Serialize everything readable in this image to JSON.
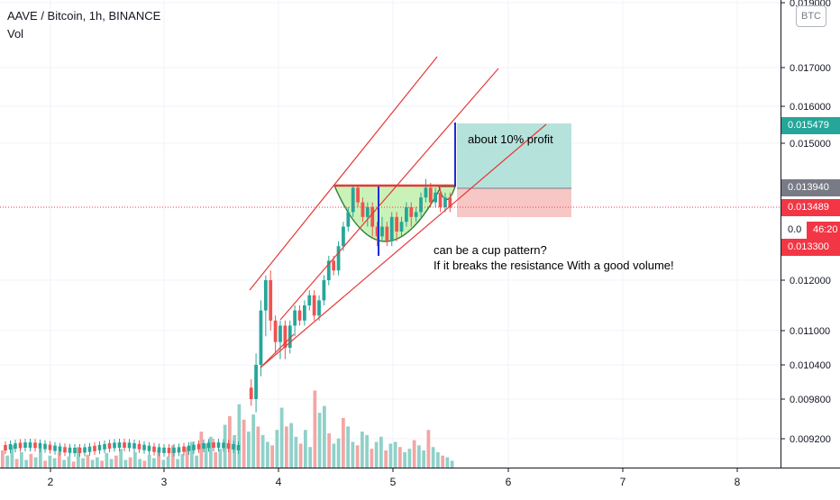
{
  "header": {
    "title": "AAVE / Bitcoin, 1h, BINANCE",
    "indicator": "Vol"
  },
  "currency_badge": "BTC",
  "price_scale": [
    "0.019000",
    "0.017000",
    "0.016000",
    "0.015000",
    "0.012000",
    "0.011000",
    "0.010400",
    "0.009800",
    "0.009200"
  ],
  "time_axis": [
    "2",
    "3",
    "4",
    "5",
    "6",
    "7",
    "8"
  ],
  "price_tags": {
    "target": {
      "label": "0.015479",
      "color": "#26a69a"
    },
    "entry": {
      "label": "0.013940",
      "color": "#787b86"
    },
    "last": {
      "label": "0.013489",
      "color": "#f23645"
    },
    "countdown": {
      "label": "46:20",
      "color": "#f23645"
    },
    "low": {
      "label": "0.013300",
      "color": "#f23645"
    },
    "partial": {
      "label": "0.0"
    }
  },
  "annotations": {
    "profit": "about 10% profit",
    "cup_line1": "can be a cup pattern?",
    "cup_line2": "If it breaks the resistance With a good volume!"
  },
  "colors": {
    "up": "#26a69a",
    "down": "#ef5350",
    "vol_up": "#8fd1c8",
    "vol_down": "#f2a6a5",
    "channel": "#e53935",
    "target_line": "#1f2ad6",
    "profit_zone": "#b6e2dc",
    "loss_zone": "#f7c7c6",
    "cup_fill": "#c9f2b8"
  },
  "chart_data": {
    "type": "candlestick",
    "symbol": "AAVE / Bitcoin",
    "interval": "1h",
    "exchange": "BINANCE",
    "y_axis_ticks": [
      0.019,
      0.017,
      0.016,
      0.015,
      0.012,
      0.011,
      0.0104,
      0.0098,
      0.0092
    ],
    "x_axis_ticks": [
      "2",
      "3",
      "4",
      "5",
      "6",
      "7",
      "8"
    ],
    "ylim": [
      0.0087,
      0.0192
    ],
    "last_price": 0.013489,
    "resistance": 0.01394,
    "target_price": 0.015479,
    "stop_price": 0.0133,
    "candles": [
      [
        0.01,
        0.0098,
        0.01015,
        0.0097
      ],
      [
        0.0098,
        0.0104,
        0.0106,
        0.0096
      ],
      [
        0.0104,
        0.0114,
        0.0116,
        0.0102
      ],
      [
        0.0114,
        0.012,
        0.0121,
        0.0109
      ],
      [
        0.012,
        0.0112,
        0.0122,
        0.011
      ],
      [
        0.0112,
        0.0108,
        0.0113,
        0.0106
      ],
      [
        0.0108,
        0.0111,
        0.0112,
        0.0105
      ],
      [
        0.0111,
        0.0107,
        0.0112,
        0.0105
      ],
      [
        0.0107,
        0.0111,
        0.0112,
        0.0106
      ],
      [
        0.0111,
        0.0114,
        0.0115,
        0.0109
      ],
      [
        0.0114,
        0.0112,
        0.0115,
        0.0111
      ],
      [
        0.0112,
        0.0115,
        0.0116,
        0.0111
      ],
      [
        0.0115,
        0.0117,
        0.0118,
        0.0114
      ],
      [
        0.0117,
        0.0113,
        0.0118,
        0.0112
      ],
      [
        0.0113,
        0.0116,
        0.0117,
        0.0112
      ],
      [
        0.0116,
        0.012,
        0.0121,
        0.0115
      ],
      [
        0.012,
        0.0124,
        0.0125,
        0.0119
      ],
      [
        0.0124,
        0.0122,
        0.0125,
        0.0121
      ],
      [
        0.0122,
        0.0127,
        0.0128,
        0.0121
      ],
      [
        0.0127,
        0.0131,
        0.0132,
        0.0126
      ],
      [
        0.0131,
        0.0134,
        0.0135,
        0.013
      ],
      [
        0.0134,
        0.0139,
        0.01395,
        0.0133
      ],
      [
        0.0139,
        0.0136,
        0.01395,
        0.0135
      ],
      [
        0.0136,
        0.0133,
        0.0137,
        0.0132
      ],
      [
        0.0133,
        0.0135,
        0.0136,
        0.0131
      ],
      [
        0.0135,
        0.0131,
        0.0136,
        0.0129
      ],
      [
        0.0131,
        0.0129,
        0.0132,
        0.0127
      ],
      [
        0.0129,
        0.0131,
        0.0133,
        0.0128
      ],
      [
        0.0131,
        0.0128,
        0.0132,
        0.0127
      ],
      [
        0.0128,
        0.0133,
        0.0134,
        0.0127
      ],
      [
        0.0133,
        0.013,
        0.0134,
        0.0128
      ],
      [
        0.013,
        0.0132,
        0.0133,
        0.0129
      ],
      [
        0.0132,
        0.0135,
        0.0136,
        0.0131
      ],
      [
        0.0135,
        0.0133,
        0.0136,
        0.0131
      ],
      [
        0.0133,
        0.0134,
        0.0135,
        0.0132
      ],
      [
        0.0134,
        0.0137,
        0.0138,
        0.0133
      ],
      [
        0.0137,
        0.0139,
        0.0141,
        0.0136
      ],
      [
        0.0139,
        0.0136,
        0.014,
        0.0135
      ],
      [
        0.0136,
        0.0138,
        0.0139,
        0.0135
      ],
      [
        0.0138,
        0.0135,
        0.0139,
        0.0134
      ],
      [
        0.0135,
        0.0137,
        0.0138,
        0.0134
      ],
      [
        0.0137,
        0.01349,
        0.0138,
        0.0134
      ]
    ],
    "volume_estimate": "relative bar heights only; no volume scale is printed"
  }
}
